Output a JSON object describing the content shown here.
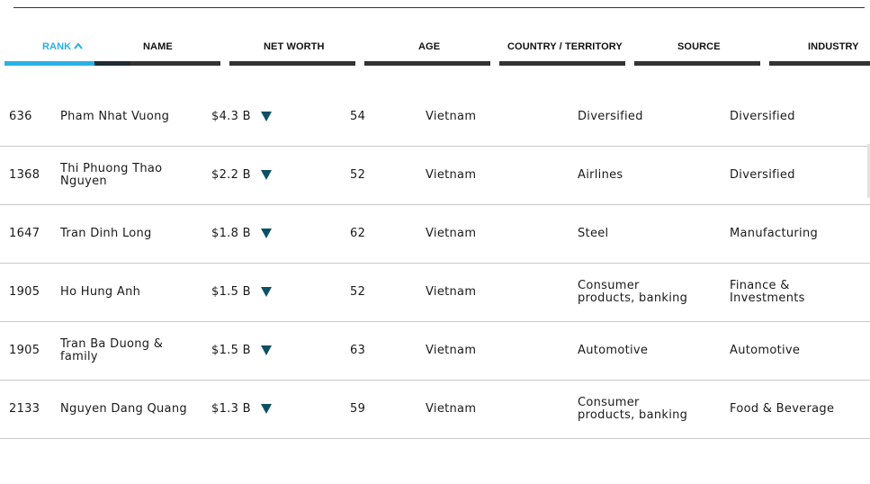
{
  "columns": {
    "rank": "RANK",
    "name": "NAME",
    "net_worth": "NET WORTH",
    "age": "AGE",
    "country": "COUNTRY / TERRITORY",
    "source": "SOURCE",
    "industry": "INDUSTRY"
  },
  "sort": {
    "column": "rank",
    "direction": "ascending",
    "icon": "chevron-up-icon"
  },
  "colors": {
    "accent": "#29b1e5",
    "trend_down": "#0d4f63"
  },
  "rows": [
    {
      "rank": "636",
      "name": "Pham Nhat Vuong",
      "net_worth": "$4.3 B",
      "trend": "down",
      "age": "54",
      "country": "Vietnam",
      "source": "Diversified",
      "industry": "Diversified"
    },
    {
      "rank": "1368",
      "name": "Thi Phuong Thao Nguyen",
      "net_worth": "$2.2 B",
      "trend": "down",
      "age": "52",
      "country": "Vietnam",
      "source": "Airlines",
      "industry": "Diversified"
    },
    {
      "rank": "1647",
      "name": "Tran Dinh Long",
      "net_worth": "$1.8 B",
      "trend": "down",
      "age": "62",
      "country": "Vietnam",
      "source": "Steel",
      "industry": "Manufacturing"
    },
    {
      "rank": "1905",
      "name": "Ho Hung Anh",
      "net_worth": "$1.5 B",
      "trend": "down",
      "age": "52",
      "country": "Vietnam",
      "source": "Consumer products, banking",
      "industry": "Finance & Investments"
    },
    {
      "rank": "1905",
      "name": "Tran Ba Duong & family",
      "net_worth": "$1.5 B",
      "trend": "down",
      "age": "63",
      "country": "Vietnam",
      "source": "Automotive",
      "industry": "Automotive"
    },
    {
      "rank": "2133",
      "name": "Nguyen Dang Quang",
      "net_worth": "$1.3 B",
      "trend": "down",
      "age": "59",
      "country": "Vietnam",
      "source": "Consumer products, banking",
      "industry": "Food & Beverage"
    }
  ]
}
